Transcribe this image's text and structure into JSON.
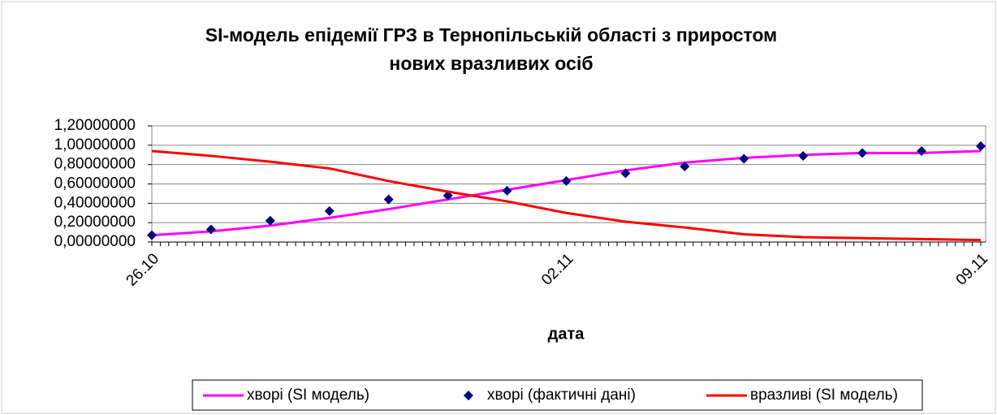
{
  "chart_data": {
    "type": "line",
    "title": [
      "SI-модель епідемії ГРЗ в Тернопільській області з приростом",
      "нових вразливих осіб"
    ],
    "x_label": "дата",
    "categories": [
      "26.10",
      null,
      null,
      null,
      null,
      null,
      null,
      "02.11",
      null,
      null,
      null,
      null,
      null,
      null,
      "09.11"
    ],
    "ylim": [
      0,
      1.2
    ],
    "yticks": [
      {
        "value": 0,
        "label": "0,00000000"
      },
      {
        "value": 0.2,
        "label": "0,20000000"
      },
      {
        "value": 0.4,
        "label": "0,40000000"
      },
      {
        "value": 0.6,
        "label": "0,60000000"
      },
      {
        "value": 0.8,
        "label": "0,80000000"
      },
      {
        "value": 1,
        "label": "1,00000000"
      },
      {
        "value": 1.2,
        "label": "1,20000000"
      }
    ],
    "grid": true,
    "legend": "bottom",
    "series": [
      {
        "name": "хворі (SI модель)",
        "color": "#ff00ff",
        "style": "line",
        "values": [
          0.07,
          0.11,
          0.17,
          0.25,
          0.34,
          0.44,
          0.54,
          0.64,
          0.74,
          0.82,
          0.87,
          0.9,
          0.92,
          0.92,
          0.94
        ]
      },
      {
        "name": "хворі (фактичні дані)",
        "color": "#000080",
        "style": "markers",
        "values": [
          0.07,
          0.13,
          0.22,
          0.32,
          0.44,
          0.48,
          0.53,
          0.63,
          0.71,
          0.78,
          0.86,
          0.89,
          0.92,
          0.94,
          0.99
        ]
      },
      {
        "name": "вразливі (SI модель)",
        "color": "#ff0000",
        "style": "line",
        "values": [
          0.94,
          0.89,
          0.83,
          0.76,
          0.63,
          0.52,
          0.42,
          0.3,
          0.21,
          0.15,
          0.08,
          0.05,
          0.04,
          0.03,
          0.02
        ]
      }
    ]
  }
}
